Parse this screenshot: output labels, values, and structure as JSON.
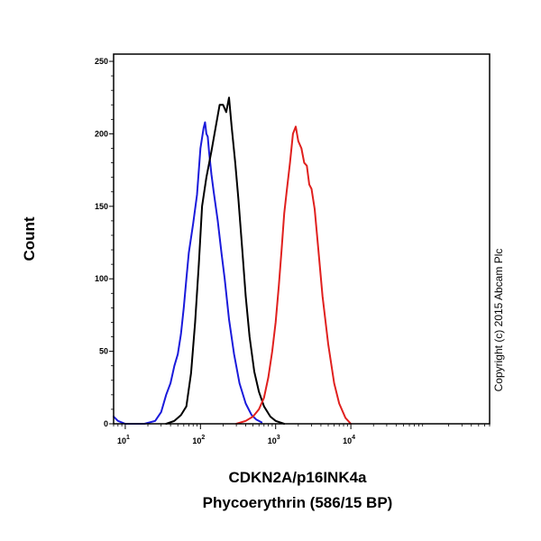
{
  "chart_data": {
    "type": "line",
    "title": "",
    "xlabel": [
      "CDKN2A/p16INK4a",
      "Phycoerythrin (586/15 BP)"
    ],
    "ylabel": "Count",
    "x_scale": "log",
    "xlim": [
      7,
      700000
    ],
    "ylim": [
      0,
      255
    ],
    "y_ticks": [
      0,
      50,
      100,
      150,
      200,
      250
    ],
    "x_ticks": [
      {
        "value": 10,
        "label": "10",
        "exp": "1"
      },
      {
        "value": 100,
        "label": "10",
        "exp": "2"
      },
      {
        "value": 1000,
        "label": "10",
        "exp": "3"
      },
      {
        "value": 10000,
        "label": "10",
        "exp": "4"
      }
    ],
    "grid": false,
    "legend": "none",
    "copyright": "Copyright (c) 2015 Abcam Plc",
    "series": [
      {
        "color": "#1a1adb",
        "x": [
          7,
          8,
          10,
          13,
          18,
          25,
          30,
          35,
          40,
          45,
          50,
          55,
          60,
          65,
          70,
          80,
          90,
          100,
          110,
          115,
          120,
          125,
          130,
          140,
          150,
          170,
          190,
          210,
          240,
          280,
          330,
          400,
          480,
          550,
          650
        ],
        "y": [
          5,
          2,
          0,
          0,
          0,
          2,
          8,
          20,
          28,
          40,
          48,
          62,
          80,
          100,
          118,
          138,
          158,
          190,
          204,
          208,
          200,
          198,
          188,
          172,
          160,
          140,
          118,
          100,
          72,
          48,
          28,
          14,
          6,
          3,
          1
        ]
      },
      {
        "color": "#000000",
        "x": [
          35,
          45,
          55,
          65,
          75,
          85,
          95,
          105,
          120,
          140,
          160,
          180,
          200,
          220,
          240,
          260,
          290,
          320,
          360,
          400,
          450,
          520,
          600,
          700,
          850,
          1000,
          1300
        ],
        "y": [
          0,
          2,
          6,
          12,
          35,
          70,
          110,
          150,
          170,
          188,
          205,
          220,
          220,
          215,
          225,
          205,
          180,
          155,
          120,
          88,
          60,
          36,
          22,
          12,
          5,
          2,
          0
        ]
      },
      {
        "color": "#e0201e",
        "x": [
          300,
          400,
          500,
          600,
          700,
          800,
          900,
          1000,
          1100,
          1200,
          1300,
          1400,
          1550,
          1700,
          1850,
          2000,
          2200,
          2400,
          2600,
          2800,
          3000,
          3300,
          3700,
          4200,
          5000,
          6000,
          7000,
          8500,
          10000
        ],
        "y": [
          0,
          2,
          5,
          10,
          18,
          32,
          50,
          70,
          95,
          120,
          145,
          160,
          180,
          200,
          205,
          195,
          190,
          180,
          178,
          165,
          162,
          148,
          120,
          88,
          55,
          28,
          14,
          4,
          0
        ]
      }
    ]
  }
}
